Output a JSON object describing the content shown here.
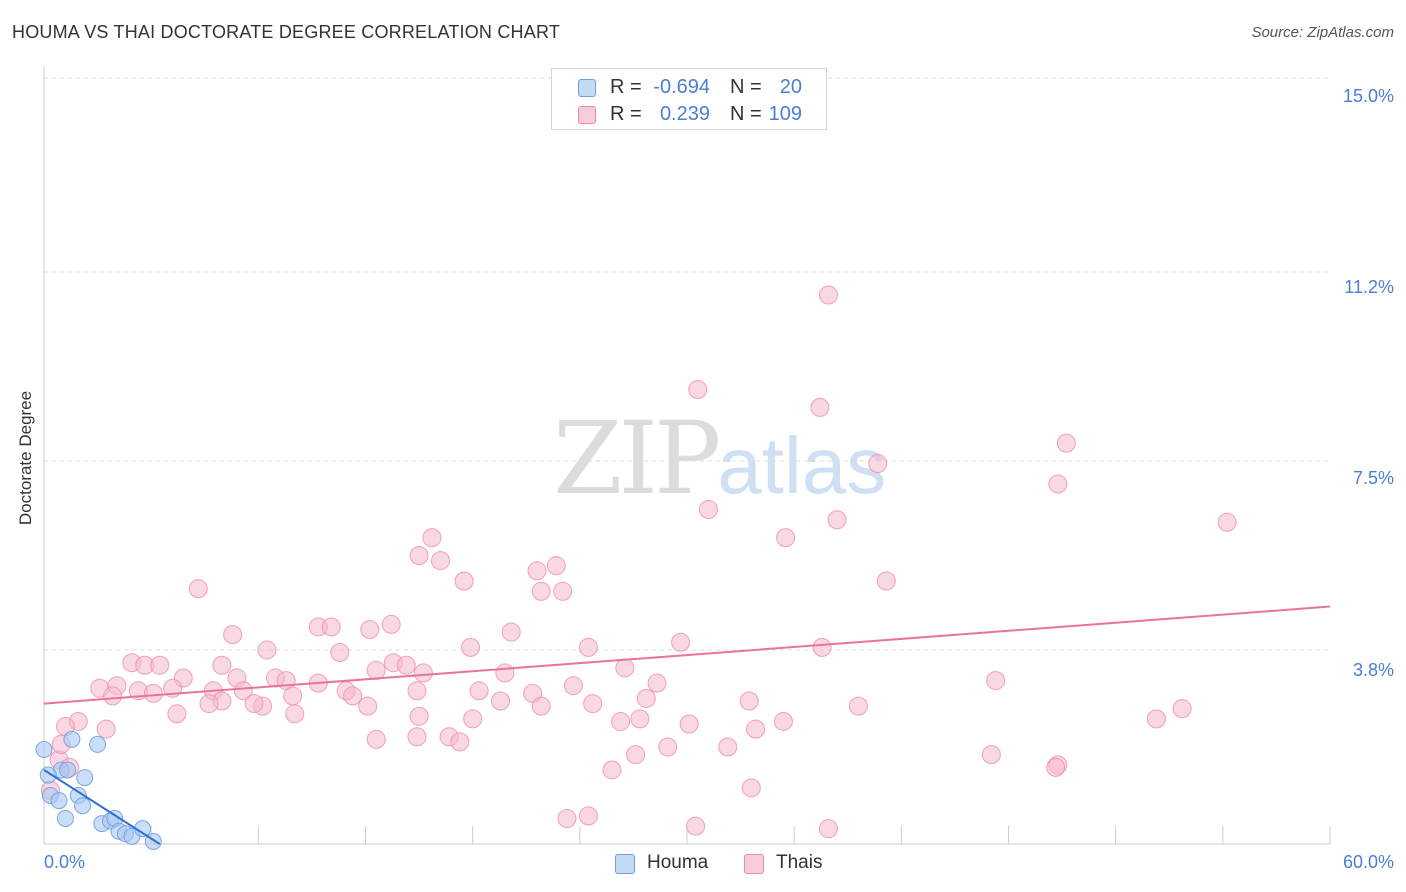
{
  "header": {
    "title": "HOUMA VS THAI DOCTORATE DEGREE CORRELATION CHART",
    "source": "Source: ZipAtlas.com"
  },
  "watermark": {
    "zip": "ZIP",
    "atlas": "atlas"
  },
  "colors": {
    "houma_fill": "#a9c8f2",
    "houma_stroke": "#6f9fdf",
    "houma_line": "#2e6fd0",
    "thai_fill": "#f6b8cc",
    "thai_stroke": "#ec8cab",
    "thai_line": "#e8749c",
    "tick_text": "#4a7fd4",
    "grid": "#dddddd"
  },
  "legend": {
    "rows": [
      {
        "r_label": "R =",
        "r_value": "-0.694",
        "n_label": "N =",
        "n_value": "20"
      },
      {
        "r_label": "R =",
        "r_value": "0.239",
        "n_label": "N =",
        "n_value": "109"
      }
    ],
    "bottom": [
      {
        "label": "Houma"
      },
      {
        "label": "Thais"
      }
    ]
  },
  "chart_data": {
    "type": "scatter",
    "title": "HOUMA VS THAI DOCTORATE DEGREE CORRELATION CHART",
    "xlabel": "",
    "ylabel": "Doctorate Degree",
    "xlim": [
      0,
      60
    ],
    "ylim": [
      0,
      15
    ],
    "x_tick_labels": [
      "0.0%",
      "60.0%"
    ],
    "y_ticks": [
      3.8,
      7.5,
      11.2,
      15.0
    ],
    "y_tick_labels": [
      "3.8%",
      "7.5%",
      "11.2%",
      "15.0%"
    ],
    "grid": true,
    "legend_position": "top-center",
    "series": [
      {
        "name": "Houma",
        "r": -0.694,
        "n": 20,
        "trend": {
          "x": [
            0.0,
            5.4
          ],
          "y": [
            1.45,
            0.0
          ]
        },
        "points": [
          [
            0.0,
            1.85
          ],
          [
            0.8,
            1.45
          ],
          [
            1.1,
            1.45
          ],
          [
            1.3,
            2.05
          ],
          [
            2.5,
            1.95
          ],
          [
            1.9,
            1.3
          ],
          [
            0.3,
            0.95
          ],
          [
            0.7,
            0.85
          ],
          [
            1.6,
            0.95
          ],
          [
            1.8,
            0.75
          ],
          [
            1.0,
            0.5
          ],
          [
            2.7,
            0.4
          ],
          [
            3.1,
            0.45
          ],
          [
            3.3,
            0.5
          ],
          [
            3.5,
            0.25
          ],
          [
            3.8,
            0.2
          ],
          [
            4.1,
            0.15
          ],
          [
            4.6,
            0.3
          ],
          [
            5.1,
            0.05
          ],
          [
            0.2,
            1.35
          ]
        ]
      },
      {
        "name": "Thais",
        "r": 0.239,
        "n": 109,
        "trend": {
          "x": [
            0.0,
            60.0
          ],
          "y": [
            2.75,
            4.65
          ]
        },
        "points": [
          [
            36.6,
            10.75
          ],
          [
            30.5,
            8.9
          ],
          [
            36.2,
            8.55
          ],
          [
            47.7,
            7.85
          ],
          [
            38.9,
            7.45
          ],
          [
            47.3,
            7.05
          ],
          [
            31.0,
            6.55
          ],
          [
            37.0,
            6.35
          ],
          [
            55.2,
            6.3
          ],
          [
            34.6,
            6.0
          ],
          [
            18.1,
            6.0
          ],
          [
            17.5,
            5.65
          ],
          [
            18.5,
            5.55
          ],
          [
            23.0,
            5.35
          ],
          [
            23.9,
            5.45
          ],
          [
            19.6,
            5.15
          ],
          [
            39.3,
            5.15
          ],
          [
            7.2,
            5.0
          ],
          [
            23.2,
            4.95
          ],
          [
            24.2,
            4.95
          ],
          [
            16.2,
            4.3
          ],
          [
            12.8,
            4.25
          ],
          [
            13.4,
            4.25
          ],
          [
            15.2,
            4.2
          ],
          [
            21.8,
            4.15
          ],
          [
            8.8,
            4.1
          ],
          [
            25.4,
            3.85
          ],
          [
            19.9,
            3.85
          ],
          [
            29.7,
            3.95
          ],
          [
            36.3,
            3.85
          ],
          [
            10.4,
            3.8
          ],
          [
            13.8,
            3.75
          ],
          [
            4.1,
            3.55
          ],
          [
            4.7,
            3.5
          ],
          [
            5.4,
            3.5
          ],
          [
            8.3,
            3.5
          ],
          [
            15.5,
            3.4
          ],
          [
            16.3,
            3.55
          ],
          [
            16.9,
            3.5
          ],
          [
            17.7,
            3.35
          ],
          [
            21.5,
            3.35
          ],
          [
            27.1,
            3.45
          ],
          [
            0.7,
            1.65
          ],
          [
            9.0,
            3.25
          ],
          [
            6.5,
            3.25
          ],
          [
            10.8,
            3.25
          ],
          [
            11.3,
            3.2
          ],
          [
            12.8,
            3.15
          ],
          [
            2.6,
            3.05
          ],
          [
            3.4,
            3.1
          ],
          [
            4.4,
            3.0
          ],
          [
            5.1,
            2.95
          ],
          [
            6.0,
            3.05
          ],
          [
            7.9,
            3.0
          ],
          [
            9.3,
            3.0
          ],
          [
            14.1,
            3.0
          ],
          [
            17.4,
            3.0
          ],
          [
            20.3,
            3.0
          ],
          [
            22.8,
            2.95
          ],
          [
            24.7,
            3.1
          ],
          [
            28.6,
            3.15
          ],
          [
            3.2,
            2.9
          ],
          [
            11.6,
            2.9
          ],
          [
            14.4,
            2.9
          ],
          [
            8.3,
            2.8
          ],
          [
            10.2,
            2.7
          ],
          [
            9.8,
            2.75
          ],
          [
            7.7,
            2.75
          ],
          [
            15.1,
            2.7
          ],
          [
            21.3,
            2.8
          ],
          [
            25.6,
            2.75
          ],
          [
            28.1,
            2.85
          ],
          [
            32.9,
            2.8
          ],
          [
            38.0,
            2.7
          ],
          [
            23.2,
            2.7
          ],
          [
            6.2,
            2.55
          ],
          [
            11.7,
            2.55
          ],
          [
            17.5,
            2.5
          ],
          [
            20.0,
            2.45
          ],
          [
            26.9,
            2.4
          ],
          [
            27.8,
            2.45
          ],
          [
            34.5,
            2.4
          ],
          [
            30.1,
            2.35
          ],
          [
            1.6,
            2.4
          ],
          [
            53.1,
            2.65
          ],
          [
            51.9,
            2.45
          ],
          [
            33.2,
            2.25
          ],
          [
            1.0,
            2.3
          ],
          [
            2.9,
            2.25
          ],
          [
            15.5,
            2.05
          ],
          [
            17.4,
            2.1
          ],
          [
            18.9,
            2.1
          ],
          [
            19.4,
            2.0
          ],
          [
            29.1,
            1.9
          ],
          [
            31.9,
            1.9
          ],
          [
            44.4,
            3.2
          ],
          [
            44.2,
            1.75
          ],
          [
            47.3,
            1.55
          ],
          [
            47.2,
            1.5
          ],
          [
            27.6,
            1.75
          ],
          [
            25.4,
            0.55
          ],
          [
            24.4,
            0.5
          ],
          [
            30.4,
            0.35
          ],
          [
            36.6,
            0.3
          ],
          [
            26.5,
            1.45
          ],
          [
            33.0,
            1.1
          ],
          [
            0.8,
            1.95
          ],
          [
            0.3,
            1.05
          ],
          [
            1.2,
            1.5
          ]
        ]
      }
    ]
  }
}
